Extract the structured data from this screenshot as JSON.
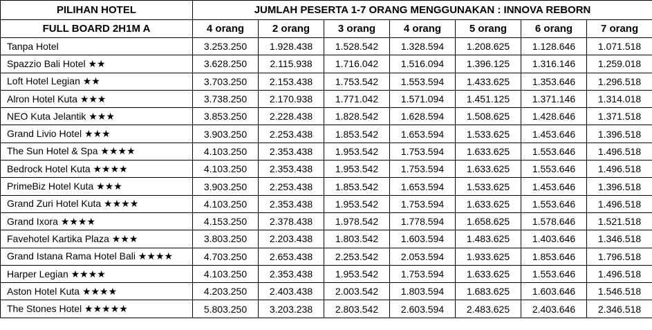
{
  "header": {
    "title_lines": [
      "PILIHAN HOTEL",
      "FULL BOARD 2H1M A"
    ],
    "span_title": "JUMLAH PESERTA 1-7 ORANG MENGGUNAKAN : INNOVA REBORN",
    "columns": [
      "4 orang",
      "2 orang",
      "3 orang",
      "4 orang",
      "5 orang",
      "6 orang",
      "7 orang"
    ]
  },
  "rows": [
    {
      "name": "Tanpa Hotel",
      "values": [
        "3.253.250",
        "1.928.438",
        "1.528.542",
        "1.328.594",
        "1.208.625",
        "1.128.646",
        "1.071.518"
      ]
    },
    {
      "name": "Spazzio Bali Hotel ★★",
      "values": [
        "3.628.250",
        "2.115.938",
        "1.716.042",
        "1.516.094",
        "1.396.125",
        "1.316.146",
        "1.259.018"
      ]
    },
    {
      "name": "Loft Hotel Legian ★★",
      "values": [
        "3.703.250",
        "2.153.438",
        "1.753.542",
        "1.553.594",
        "1.433.625",
        "1.353.646",
        "1.296.518"
      ]
    },
    {
      "name": "Alron Hotel Kuta ★★★",
      "values": [
        "3.738.250",
        "2.170.938",
        "1.771.042",
        "1.571.094",
        "1.451.125",
        "1.371.146",
        "1.314.018"
      ]
    },
    {
      "name": "NEO Kuta Jelantik ★★★",
      "values": [
        "3.853.250",
        "2.228.438",
        "1.828.542",
        "1.628.594",
        "1.508.625",
        "1.428.646",
        "1.371.518"
      ]
    },
    {
      "name": "Grand Livio Hotel ★★★",
      "values": [
        "3.903.250",
        "2.253.438",
        "1.853.542",
        "1.653.594",
        "1.533.625",
        "1.453.646",
        "1.396.518"
      ]
    },
    {
      "name": "The Sun Hotel & Spa ★★★★",
      "values": [
        "4.103.250",
        "2.353.438",
        "1.953.542",
        "1.753.594",
        "1.633.625",
        "1.553.646",
        "1.496.518"
      ]
    },
    {
      "name": "Bedrock Hotel Kuta ★★★★",
      "values": [
        "4.103.250",
        "2.353.438",
        "1.953.542",
        "1.753.594",
        "1.633.625",
        "1.553.646",
        "1.496.518"
      ]
    },
    {
      "name": "PrimeBiz Hotel Kuta ★★★",
      "values": [
        "3.903.250",
        "2.253.438",
        "1.853.542",
        "1.653.594",
        "1.533.625",
        "1.453.646",
        "1.396.518"
      ]
    },
    {
      "name": "Grand Zuri Hotel Kuta ★★★★",
      "values": [
        "4.103.250",
        "2.353.438",
        "1.953.542",
        "1.753.594",
        "1.633.625",
        "1.553.646",
        "1.496.518"
      ]
    },
    {
      "name": "Grand Ixora ★★★★",
      "values": [
        "4.153.250",
        "2.378.438",
        "1.978.542",
        "1.778.594",
        "1.658.625",
        "1.578.646",
        "1.521.518"
      ]
    },
    {
      "name": "Favehotel Kartika Plaza ★★★",
      "values": [
        "3.803.250",
        "2.203.438",
        "1.803.542",
        "1.603.594",
        "1.483.625",
        "1.403.646",
        "1.346.518"
      ]
    },
    {
      "name": "Grand Istana Rama Hotel Bali ★★★★",
      "values": [
        "4.703.250",
        "2.653.438",
        "2.253.542",
        "2.053.594",
        "1.933.625",
        "1.853.646",
        "1.796.518"
      ]
    },
    {
      "name": "Harper Legian ★★★★",
      "values": [
        "4.103.250",
        "2.353.438",
        "1.953.542",
        "1.753.594",
        "1.633.625",
        "1.553.646",
        "1.496.518"
      ]
    },
    {
      "name": "Aston Hotel Kuta ★★★★",
      "values": [
        "4.203.250",
        "2.403.438",
        "2.003.542",
        "1.803.594",
        "1.683.625",
        "1.603.646",
        "1.546.518"
      ]
    },
    {
      "name": "The Stones Hotel ★★★★★",
      "values": [
        "5.803.250",
        "3.203.238",
        "2.803.542",
        "2.603.594",
        "2.483.625",
        "2.403.646",
        "2.346.518"
      ]
    }
  ]
}
